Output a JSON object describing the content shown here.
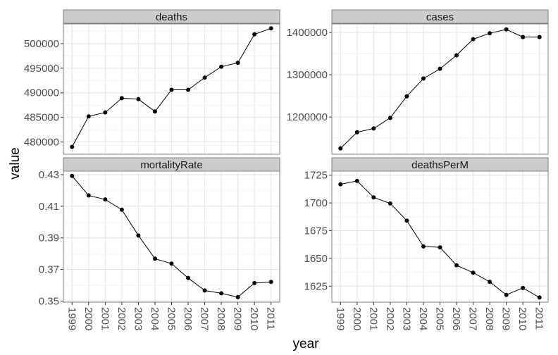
{
  "chart_data": {
    "type": "line",
    "layout": "facet-grid-2x2",
    "xlabel": "year",
    "ylabel": "value",
    "grid": true,
    "x": [
      "1999",
      "2000",
      "2001",
      "2002",
      "2003",
      "2004",
      "2005",
      "2006",
      "2007",
      "2008",
      "2009",
      "2010",
      "2011"
    ],
    "panels": [
      {
        "strip": "deaths",
        "ylim": [
          477500,
          504000
        ],
        "yticks": [
          480000,
          485000,
          490000,
          495000,
          500000
        ],
        "ytick_labels": [
          "480000",
          "485000",
          "490000",
          "495000",
          "500000"
        ],
        "values": [
          479000,
          485200,
          486000,
          488900,
          488700,
          486200,
          490600,
          490600,
          493100,
          495300,
          496100,
          501900,
          503100
        ]
      },
      {
        "strip": "cases",
        "ylim": [
          1112000,
          1420000
        ],
        "yticks": [
          1200000,
          1300000,
          1400000
        ],
        "ytick_labels": [
          "1200000",
          "1300000",
          "1400000"
        ],
        "values": [
          1126000,
          1164000,
          1173000,
          1198000,
          1249000,
          1291000,
          1314000,
          1346000,
          1384000,
          1398000,
          1407000,
          1389000,
          1389000
        ]
      },
      {
        "strip": "mortalityRate",
        "ylim": [
          0.3493,
          0.4322
        ],
        "yticks": [
          0.35,
          0.37,
          0.39,
          0.41,
          0.43
        ],
        "ytick_labels": [
          "0.35",
          "0.37",
          "0.39",
          "0.41",
          "0.43"
        ],
        "values": [
          0.4292,
          0.4168,
          0.4143,
          0.4078,
          0.3915,
          0.3768,
          0.3737,
          0.3646,
          0.3567,
          0.3549,
          0.3525,
          0.3614,
          0.3621
        ]
      },
      {
        "strip": "deathsPerM",
        "ylim": [
          1610.6,
          1728.6
        ],
        "yticks": [
          1625,
          1650,
          1675,
          1700,
          1725
        ],
        "ytick_labels": [
          "1625",
          "1650",
          "1675",
          "1700",
          "1725"
        ],
        "values": [
          1716.8,
          1719.8,
          1705.0,
          1699.5,
          1684.0,
          1660.8,
          1660.0,
          1643.8,
          1637.2,
          1628.9,
          1617.2,
          1623.4,
          1614.8
        ]
      }
    ],
    "colors": {
      "line": "#000000",
      "point": "#000000",
      "panel_border": "#7f7f7f",
      "strip_fill": "#cccccc",
      "major_grid": "#e5e5e5",
      "minor_grid": "#f2f2f2"
    }
  }
}
